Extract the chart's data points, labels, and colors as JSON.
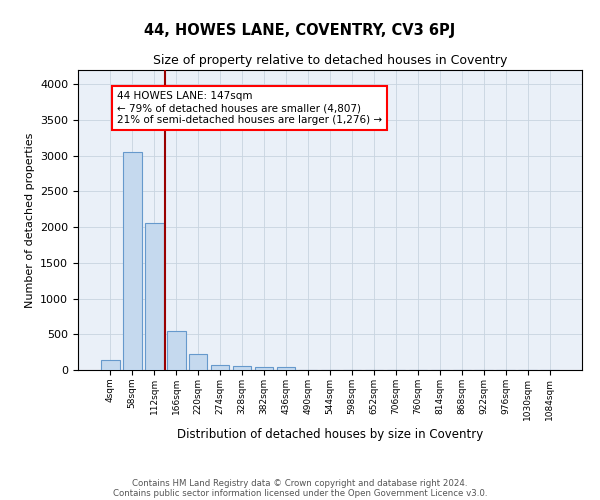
{
  "title": "44, HOWES LANE, COVENTRY, CV3 6PJ",
  "subtitle": "Size of property relative to detached houses in Coventry",
  "xlabel": "Distribution of detached houses by size in Coventry",
  "ylabel": "Number of detached properties",
  "footnote1": "Contains HM Land Registry data © Crown copyright and database right 2024.",
  "footnote2": "Contains public sector information licensed under the Open Government Licence v3.0.",
  "annotation_title": "44 HOWES LANE: 147sqm",
  "annotation_line1": "← 79% of detached houses are smaller (4,807)",
  "annotation_line2": "21% of semi-detached houses are larger (1,276) →",
  "bar_labels": [
    "4sqm",
    "58sqm",
    "112sqm",
    "166sqm",
    "220sqm",
    "274sqm",
    "328sqm",
    "382sqm",
    "436sqm",
    "490sqm",
    "544sqm",
    "598sqm",
    "652sqm",
    "706sqm",
    "760sqm",
    "814sqm",
    "868sqm",
    "922sqm",
    "976sqm",
    "1030sqm",
    "1084sqm"
  ],
  "bar_values": [
    140,
    3050,
    2060,
    550,
    220,
    75,
    55,
    45,
    40,
    0,
    0,
    0,
    0,
    0,
    0,
    0,
    0,
    0,
    0,
    0,
    0
  ],
  "bar_color": "#c5d9ee",
  "bar_edge_color": "#6699cc",
  "background_color": "#eaf0f8",
  "grid_color": "#c8d4e0",
  "red_line_x": 2.5,
  "ylim": [
    0,
    4200
  ],
  "yticks": [
    0,
    500,
    1000,
    1500,
    2000,
    2500,
    3000,
    3500,
    4000
  ]
}
